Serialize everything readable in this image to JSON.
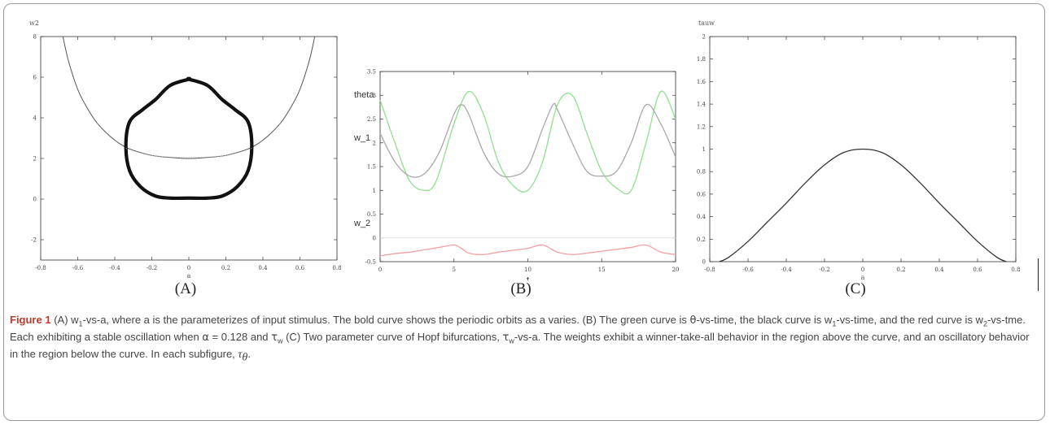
{
  "labels": {
    "panel_a": "(A)",
    "panel_b": "(B)",
    "panel_c": "(C)"
  },
  "caption": {
    "figure_label": "Figure 1",
    "segments": [
      " (A) w",
      "1",
      "-vs-a, where a is the parameterizes of input stimulus. The bold curve shows the periodic orbits as a varies. (B) The green curve is ",
      "θ",
      "-vs-time, the black curve is w",
      "1",
      "-vs-time, and the red curve is w",
      "2",
      "-vs-tme. Each exhibiting a stable oscillation when ",
      "α",
      " = 0.128 and ",
      "τ",
      "w",
      " (C) Two parameter curve of Hopf bifurcations, ",
      "τ",
      "w",
      "-vs-a. The weights exhibit a winner-take-all behavior in the region above the curve, and an oscillatory behavior in the region below the curve. In each subfigure, ",
      "τ",
      "θ",
      "."
    ]
  },
  "chart_data": [
    {
      "type": "line",
      "panel": "A",
      "xlabel": "a",
      "ylabel": "w2",
      "xlim": [
        -0.8,
        0.8
      ],
      "ylim": [
        -3,
        8
      ],
      "xticks": [
        "-0.8",
        "-0.6",
        "-0.4",
        "-0.2",
        "0",
        "0.2",
        "0.4",
        "0.6",
        "0.8"
      ],
      "yticks": [
        "-2",
        "0",
        "2",
        "4",
        "6",
        "8"
      ],
      "grid": false,
      "series": [
        {
          "style": "thin-black",
          "x": [
            -0.68,
            -0.65,
            -0.6,
            -0.55,
            -0.5,
            -0.45,
            -0.4,
            -0.35,
            -0.3,
            -0.2,
            -0.1,
            0,
            0.1,
            0.2,
            0.3,
            0.35,
            0.4,
            0.45,
            0.5,
            0.55,
            0.6,
            0.65,
            0.68
          ],
          "y": [
            8,
            6.8,
            5.4,
            4.5,
            3.8,
            3.3,
            2.9,
            2.6,
            2.4,
            2.15,
            2.05,
            2.0,
            2.05,
            2.15,
            2.4,
            2.6,
            2.9,
            3.3,
            3.8,
            4.5,
            5.4,
            6.8,
            8
          ]
        },
        {
          "style": "bold-black-closed",
          "x": [
            0,
            0.1,
            0.18,
            0.25,
            0.32,
            0.34,
            0.32,
            0.26,
            0.18,
            0.1,
            0,
            -0.1,
            -0.18,
            -0.26,
            -0.32,
            -0.34,
            -0.32,
            -0.25,
            -0.18,
            -0.1,
            0
          ],
          "y": [
            5.9,
            5.6,
            4.9,
            4.4,
            3.8,
            2.6,
            1.4,
            0.6,
            0.15,
            0.05,
            0.05,
            0.05,
            0.15,
            0.6,
            1.4,
            2.6,
            3.8,
            4.4,
            4.9,
            5.6,
            5.9
          ]
        }
      ]
    },
    {
      "type": "line",
      "panel": "B",
      "xlabel": "t",
      "xlim": [
        0,
        20
      ],
      "ylim": [
        -0.5,
        3.5
      ],
      "xticks": [
        "0",
        "5",
        "10",
        "15",
        "20"
      ],
      "yticks": [
        "-0.5",
        "0",
        "0.5",
        "1",
        "1.5",
        "2",
        "2.5",
        "3",
        "3.5"
      ],
      "curve_labels": [
        "theta",
        "w_1",
        "w_2"
      ],
      "grid": false,
      "series": [
        {
          "color": "#8fe08f",
          "x": [
            0,
            1,
            2,
            3,
            3.8,
            5,
            6,
            7,
            8,
            9,
            10,
            11,
            12,
            13,
            14,
            15,
            16,
            17,
            18,
            19,
            20
          ],
          "y": [
            2.9,
            2.0,
            1.2,
            1.0,
            1.2,
            2.4,
            3.08,
            2.6,
            1.6,
            1.1,
            1.0,
            1.6,
            2.8,
            3.0,
            2.2,
            1.4,
            1.05,
            1.0,
            2.0,
            3.08,
            2.5
          ]
        },
        {
          "color": "#a9a9a9",
          "x": [
            0,
            1,
            2,
            3,
            4,
            5,
            5.5,
            6,
            7,
            8,
            9,
            10,
            11,
            11.7,
            12,
            13,
            14,
            15,
            16,
            17,
            18,
            19,
            20
          ],
          "y": [
            2.2,
            1.6,
            1.3,
            1.35,
            1.8,
            2.6,
            2.8,
            2.6,
            1.8,
            1.35,
            1.3,
            1.5,
            2.3,
            2.8,
            2.7,
            2.0,
            1.4,
            1.3,
            1.4,
            2.0,
            2.8,
            2.4,
            1.7
          ]
        },
        {
          "color": "#f2a0a0",
          "x": [
            0,
            1,
            2,
            3,
            4,
            5,
            5.5,
            6,
            7,
            8,
            9,
            10,
            11,
            12,
            13,
            14,
            15,
            16,
            17,
            18,
            19,
            20
          ],
          "y": [
            -0.38,
            -0.33,
            -0.3,
            -0.25,
            -0.2,
            -0.15,
            -0.22,
            -0.32,
            -0.35,
            -0.3,
            -0.26,
            -0.22,
            -0.15,
            -0.3,
            -0.35,
            -0.32,
            -0.28,
            -0.24,
            -0.2,
            -0.15,
            -0.3,
            -0.35
          ]
        }
      ]
    },
    {
      "type": "line",
      "panel": "C",
      "xlabel": "a",
      "ylabel": "tauw",
      "xlim": [
        -0.8,
        0.8
      ],
      "ylim": [
        0,
        2
      ],
      "xticks": [
        "-0.8",
        "-0.6",
        "-0.4",
        "-0.2",
        "0",
        "0.2",
        "0.4",
        "0.6",
        "0.8"
      ],
      "yticks": [
        "0",
        "0.2",
        "0.4",
        "0.6",
        "0.8",
        "1",
        "1.2",
        "1.4",
        "1.6",
        "1.8",
        "2"
      ],
      "grid": false,
      "series": [
        {
          "color": "#333333",
          "x": [
            -0.75,
            -0.7,
            -0.6,
            -0.5,
            -0.4,
            -0.3,
            -0.2,
            -0.1,
            0,
            0.1,
            0.2,
            0.3,
            0.4,
            0.5,
            0.6,
            0.7,
            0.75
          ],
          "y": [
            0,
            0.04,
            0.18,
            0.35,
            0.52,
            0.7,
            0.86,
            0.97,
            1.0,
            0.97,
            0.86,
            0.7,
            0.52,
            0.35,
            0.18,
            0.04,
            0
          ]
        }
      ]
    }
  ]
}
